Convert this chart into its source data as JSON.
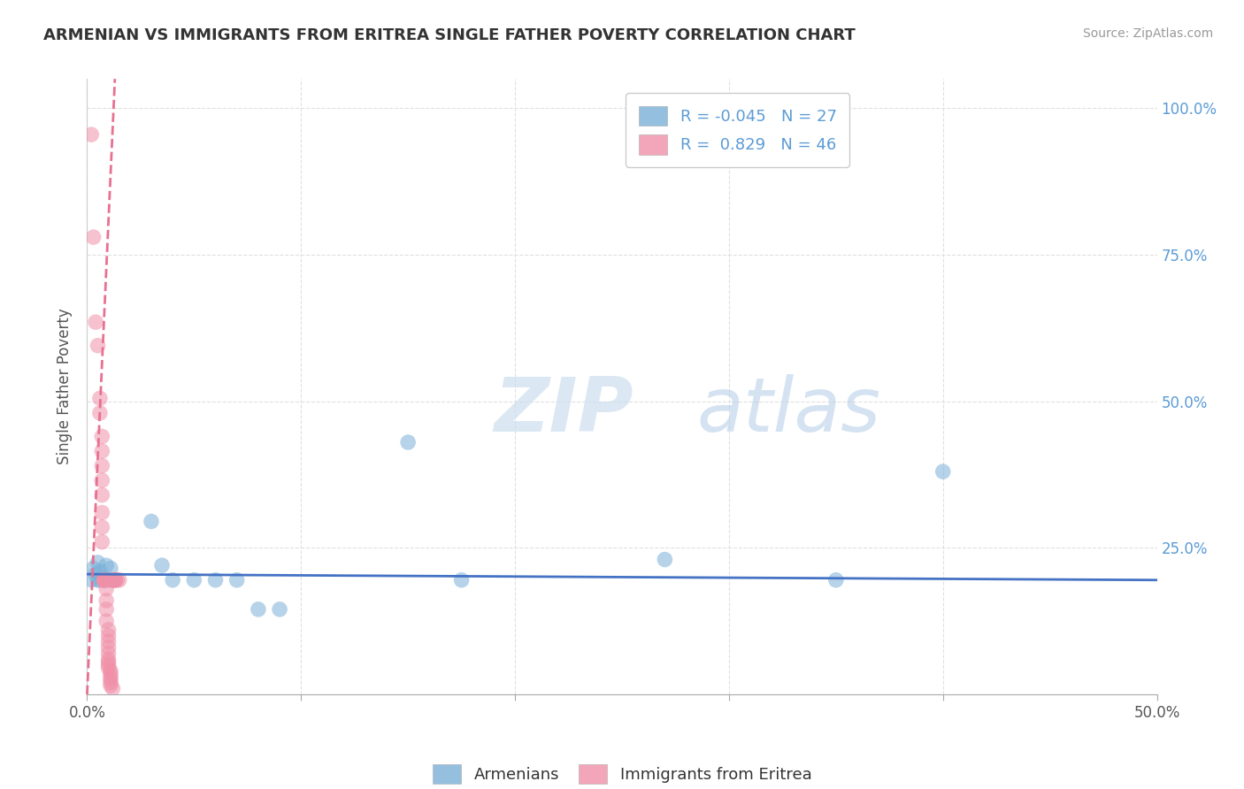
{
  "title": "ARMENIAN VS IMMIGRANTS FROM ERITREA SINGLE FATHER POVERTY CORRELATION CHART",
  "source": "Source: ZipAtlas.com",
  "ylabel_label": "Single Father Poverty",
  "xlim": [
    0.0,
    0.5
  ],
  "ylim": [
    0.0,
    1.05
  ],
  "xticks": [
    0.0,
    0.1,
    0.2,
    0.3,
    0.4,
    0.5
  ],
  "xtick_labels": [
    "0.0%",
    "",
    "",
    "",
    "",
    "50.0%"
  ],
  "yticks": [
    0.25,
    0.5,
    0.75,
    1.0
  ],
  "ytick_labels": [
    "25.0%",
    "50.0%",
    "75.0%",
    "100.0%"
  ],
  "R_armenian": -0.045,
  "N_armenian": 27,
  "R_eritrea": 0.829,
  "N_eritrea": 46,
  "armenian_color": "#7ab0d8",
  "eritrea_color": "#f090a8",
  "trendline_armenian_color": "#4472c4",
  "trendline_eritrea_color": "#e87090",
  "background_color": "#ffffff",
  "grid_color": "#e0e0e0",
  "armenian_scatter": [
    [
      0.002,
      0.195
    ],
    [
      0.003,
      0.215
    ],
    [
      0.004,
      0.205
    ],
    [
      0.005,
      0.225
    ],
    [
      0.005,
      0.195
    ],
    [
      0.006,
      0.21
    ],
    [
      0.006,
      0.195
    ],
    [
      0.007,
      0.2
    ],
    [
      0.008,
      0.195
    ],
    [
      0.009,
      0.22
    ],
    [
      0.01,
      0.195
    ],
    [
      0.011,
      0.215
    ],
    [
      0.012,
      0.195
    ],
    [
      0.013,
      0.195
    ],
    [
      0.03,
      0.295
    ],
    [
      0.035,
      0.22
    ],
    [
      0.04,
      0.195
    ],
    [
      0.05,
      0.195
    ],
    [
      0.06,
      0.195
    ],
    [
      0.07,
      0.195
    ],
    [
      0.08,
      0.145
    ],
    [
      0.09,
      0.145
    ],
    [
      0.15,
      0.43
    ],
    [
      0.175,
      0.195
    ],
    [
      0.27,
      0.23
    ],
    [
      0.35,
      0.195
    ],
    [
      0.4,
      0.38
    ]
  ],
  "eritrea_scatter": [
    [
      0.002,
      0.955
    ],
    [
      0.003,
      0.78
    ],
    [
      0.004,
      0.635
    ],
    [
      0.005,
      0.595
    ],
    [
      0.006,
      0.505
    ],
    [
      0.006,
      0.48
    ],
    [
      0.007,
      0.44
    ],
    [
      0.007,
      0.415
    ],
    [
      0.007,
      0.39
    ],
    [
      0.007,
      0.365
    ],
    [
      0.007,
      0.34
    ],
    [
      0.007,
      0.31
    ],
    [
      0.007,
      0.285
    ],
    [
      0.007,
      0.26
    ],
    [
      0.008,
      0.195
    ],
    [
      0.008,
      0.195
    ],
    [
      0.008,
      0.195
    ],
    [
      0.008,
      0.195
    ],
    [
      0.008,
      0.195
    ],
    [
      0.008,
      0.195
    ],
    [
      0.009,
      0.18
    ],
    [
      0.009,
      0.16
    ],
    [
      0.009,
      0.145
    ],
    [
      0.009,
      0.125
    ],
    [
      0.01,
      0.11
    ],
    [
      0.01,
      0.1
    ],
    [
      0.01,
      0.09
    ],
    [
      0.01,
      0.08
    ],
    [
      0.01,
      0.07
    ],
    [
      0.01,
      0.06
    ],
    [
      0.01,
      0.055
    ],
    [
      0.01,
      0.05
    ],
    [
      0.01,
      0.045
    ],
    [
      0.011,
      0.04
    ],
    [
      0.011,
      0.035
    ],
    [
      0.011,
      0.03
    ],
    [
      0.011,
      0.025
    ],
    [
      0.011,
      0.02
    ],
    [
      0.011,
      0.015
    ],
    [
      0.012,
      0.01
    ],
    [
      0.012,
      0.195
    ],
    [
      0.012,
      0.195
    ],
    [
      0.013,
      0.195
    ],
    [
      0.013,
      0.195
    ],
    [
      0.014,
      0.195
    ],
    [
      0.015,
      0.195
    ]
  ]
}
